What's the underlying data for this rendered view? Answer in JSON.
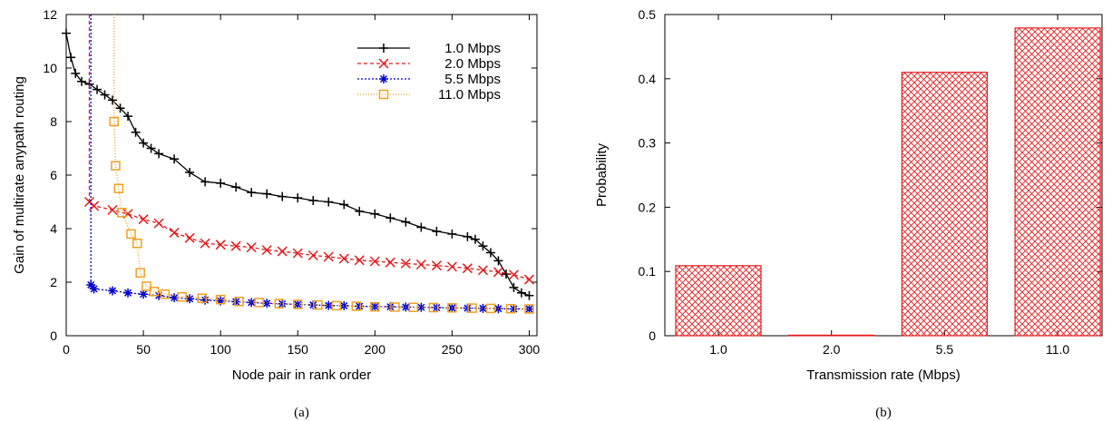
{
  "chart_data": [
    {
      "type": "line",
      "caption": "(a)",
      "xlabel": "Node pair in rank order",
      "ylabel": "Gain of multirate anypath routing",
      "xlim": [
        0,
        305
      ],
      "ylim": [
        0,
        12
      ],
      "xticks": [
        0,
        50,
        100,
        150,
        200,
        250,
        300
      ],
      "yticks": [
        0,
        2,
        4,
        6,
        8,
        10,
        12
      ],
      "legend_position": "top-right",
      "series": [
        {
          "name": "1.0 Mbps",
          "color": "#000000",
          "marker": "plus",
          "dash": "",
          "x": [
            0,
            3,
            6,
            10,
            15,
            20,
            25,
            30,
            35,
            40,
            45,
            50,
            55,
            60,
            70,
            80,
            90,
            100,
            110,
            120,
            130,
            140,
            150,
            160,
            170,
            180,
            190,
            200,
            210,
            220,
            230,
            240,
            250,
            260,
            265,
            270,
            275,
            280,
            285,
            290,
            295,
            300
          ],
          "y": [
            11.3,
            10.4,
            9.8,
            9.5,
            9.4,
            9.2,
            9.0,
            8.8,
            8.5,
            8.2,
            7.6,
            7.2,
            7.0,
            6.8,
            6.6,
            6.1,
            5.75,
            5.7,
            5.55,
            5.35,
            5.3,
            5.2,
            5.15,
            5.05,
            5.0,
            4.9,
            4.65,
            4.55,
            4.4,
            4.25,
            4.05,
            3.9,
            3.8,
            3.7,
            3.6,
            3.35,
            3.1,
            2.8,
            2.3,
            1.8,
            1.6,
            1.5
          ]
        },
        {
          "name": "2.0 Mbps",
          "color": "#e41a1c",
          "marker": "x",
          "dash": "4,3",
          "x": [
            15,
            15,
            18,
            30,
            40,
            50,
            60,
            70,
            80,
            90,
            100,
            110,
            120,
            130,
            140,
            150,
            160,
            170,
            180,
            190,
            200,
            210,
            220,
            230,
            240,
            250,
            260,
            270,
            280,
            290,
            300
          ],
          "y": [
            12,
            5.0,
            4.85,
            4.7,
            4.55,
            4.35,
            4.2,
            3.85,
            3.65,
            3.45,
            3.4,
            3.35,
            3.3,
            3.2,
            3.15,
            3.08,
            3.0,
            2.95,
            2.88,
            2.82,
            2.78,
            2.74,
            2.7,
            2.66,
            2.62,
            2.58,
            2.52,
            2.45,
            2.38,
            2.28,
            2.1
          ]
        },
        {
          "name": "5.5 Mbps",
          "color": "#0000cc",
          "marker": "star",
          "dash": "2,2",
          "x": [
            16,
            16,
            18,
            30,
            40,
            50,
            60,
            70,
            80,
            90,
            100,
            110,
            120,
            130,
            140,
            150,
            160,
            170,
            180,
            190,
            200,
            210,
            220,
            230,
            240,
            250,
            260,
            270,
            280,
            290,
            300
          ],
          "y": [
            12,
            1.9,
            1.75,
            1.68,
            1.6,
            1.55,
            1.5,
            1.42,
            1.38,
            1.33,
            1.3,
            1.27,
            1.24,
            1.21,
            1.19,
            1.17,
            1.15,
            1.13,
            1.12,
            1.1,
            1.09,
            1.08,
            1.07,
            1.06,
            1.05,
            1.04,
            1.03,
            1.02,
            1.01,
            1.0,
            1.0
          ]
        },
        {
          "name": "11.0 Mbps",
          "color": "#f0a020",
          "marker": "square",
          "dash": "1,2",
          "x": [
            31,
            31,
            32,
            34,
            36,
            42,
            46,
            48,
            52,
            57,
            64,
            75,
            88,
            100,
            112,
            125,
            138,
            150,
            163,
            175,
            188,
            200,
            213,
            225,
            238,
            250,
            263,
            275,
            288,
            300
          ],
          "y": [
            12,
            8.0,
            6.35,
            5.5,
            4.6,
            3.8,
            3.45,
            2.35,
            1.85,
            1.65,
            1.55,
            1.45,
            1.4,
            1.35,
            1.28,
            1.24,
            1.2,
            1.17,
            1.15,
            1.12,
            1.1,
            1.08,
            1.07,
            1.06,
            1.05,
            1.04,
            1.03,
            1.02,
            1.01,
            1.0
          ]
        }
      ]
    },
    {
      "type": "bar",
      "caption": "(b)",
      "xlabel": "Transmission rate (Mbps)",
      "ylabel": "Probability",
      "categories": [
        "1.0",
        "2.0",
        "5.5",
        "11.0"
      ],
      "values": [
        0.109,
        0.0,
        0.41,
        0.479
      ],
      "ylim": [
        0,
        0.5
      ],
      "yticks": [
        "0",
        "0.1",
        "0.2",
        "0.3",
        "0.4",
        "0.5"
      ],
      "bar_color": "#e41a1c",
      "pattern": "crosshatch"
    }
  ]
}
